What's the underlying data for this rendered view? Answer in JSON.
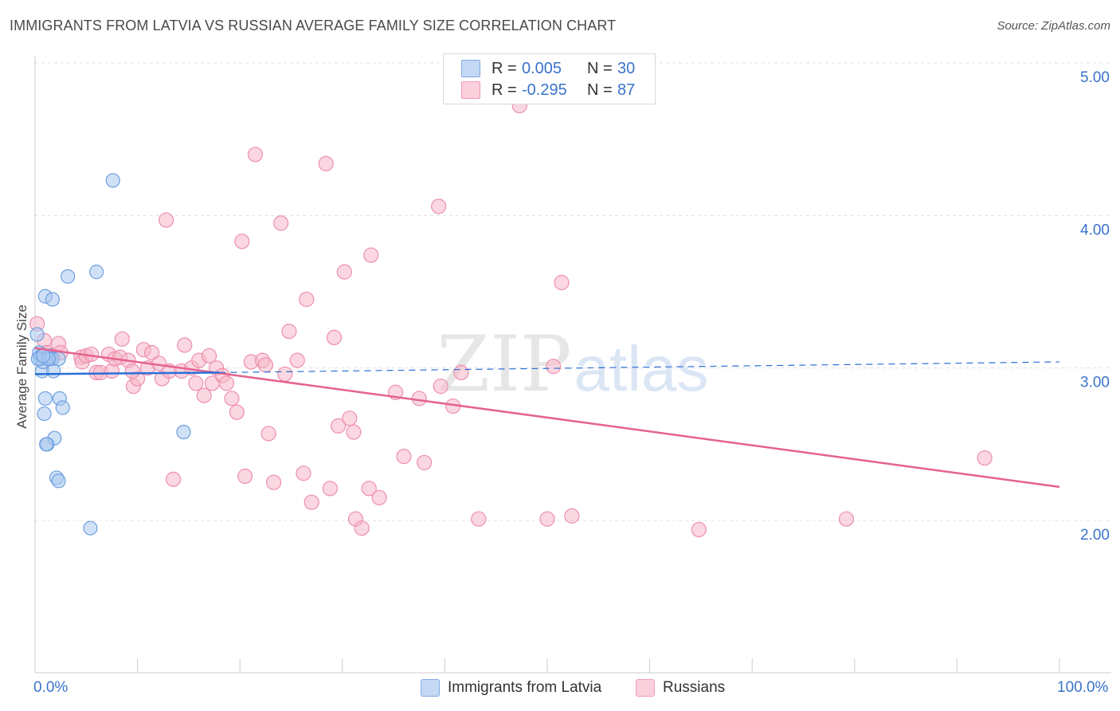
{
  "title": "IMMIGRANTS FROM LATVIA VS RUSSIAN AVERAGE FAMILY SIZE CORRELATION CHART",
  "source": "Source: ZipAtlas.com",
  "watermark": {
    "zip": "ZIP",
    "atlas": "atlas"
  },
  "legend": {
    "rows": [
      {
        "r_label": "R =",
        "r_value": "0.005",
        "n_label": "N =",
        "n_value": "30",
        "color": "#a9c8f0"
      },
      {
        "r_label": "R =",
        "r_value": "-0.295",
        "n_label": "N =",
        "n_value": "87",
        "color": "#f6b7c9"
      }
    ]
  },
  "bottom_legend": {
    "latvia": "Immigrants from Latvia",
    "russians": "Russians"
  },
  "colors": {
    "latvia_fill": "#a9c8f0",
    "latvia_stroke": "#6d9fe0",
    "latvia_line": "#2a6fd6",
    "russians_fill": "#f6b7c9",
    "russians_stroke": "#ee8fae",
    "russians_line": "#e5628e",
    "tick_text": "#3a73c9",
    "grid": "#e0e0e0"
  },
  "chart_data": {
    "type": "scatter",
    "title": "IMMIGRANTS FROM LATVIA VS RUSSIAN AVERAGE FAMILY SIZE CORRELATION CHART",
    "xlabel": "",
    "ylabel": "Average Family Size",
    "xlim": [
      0,
      100
    ],
    "ylim": [
      1.0,
      5.1
    ],
    "x_tick_labels": [
      "0.0%",
      "100.0%"
    ],
    "y_ticks": [
      2.0,
      3.0,
      4.0,
      5.0
    ],
    "y_tick_labels": [
      "2.00",
      "3.00",
      "4.00",
      "5.00"
    ],
    "grid": true,
    "legend_position": "top-center",
    "series": [
      {
        "name": "Immigrants from Latvia",
        "points": [
          [
            0.2,
            3.22
          ],
          [
            0.4,
            3.1
          ],
          [
            0.5,
            3.06
          ],
          [
            0.6,
            3.08
          ],
          [
            0.7,
            2.98
          ],
          [
            0.8,
            3.04
          ],
          [
            0.9,
            2.7
          ],
          [
            1.0,
            2.8
          ],
          [
            1.0,
            3.47
          ],
          [
            1.2,
            2.5
          ],
          [
            1.4,
            3.08
          ],
          [
            1.5,
            3.06
          ],
          [
            1.7,
            3.06
          ],
          [
            1.8,
            2.98
          ],
          [
            1.7,
            3.45
          ],
          [
            1.9,
            2.54
          ],
          [
            2.1,
            2.28
          ],
          [
            2.3,
            3.06
          ],
          [
            2.3,
            2.26
          ],
          [
            2.4,
            2.8
          ],
          [
            2.7,
            2.74
          ],
          [
            3.2,
            3.6
          ],
          [
            5.4,
            1.95
          ],
          [
            6.0,
            3.63
          ],
          [
            7.6,
            4.23
          ],
          [
            14.5,
            2.58
          ],
          [
            1.1,
            2.5
          ],
          [
            0.3,
            3.06
          ],
          [
            1.3,
            3.06
          ],
          [
            0.8,
            3.08
          ]
        ],
        "trend": {
          "x": [
            0,
            18
          ],
          "y": [
            2.96,
            2.97
          ],
          "dashed_to": [
            100,
            3.04
          ]
        }
      },
      {
        "name": "Russians",
        "points": [
          [
            0.2,
            3.29
          ],
          [
            0.9,
            3.18
          ],
          [
            1.1,
            3.1
          ],
          [
            1.4,
            3.07
          ],
          [
            1.7,
            3.08
          ],
          [
            2.3,
            3.16
          ],
          [
            2.5,
            3.1
          ],
          [
            4.5,
            3.07
          ],
          [
            4.6,
            3.04
          ],
          [
            5.0,
            3.08
          ],
          [
            5.5,
            3.09
          ],
          [
            6.0,
            2.97
          ],
          [
            6.4,
            2.97
          ],
          [
            7.2,
            3.09
          ],
          [
            7.5,
            2.98
          ],
          [
            7.8,
            3.06
          ],
          [
            8.3,
            3.07
          ],
          [
            8.5,
            3.19
          ],
          [
            9.1,
            3.05
          ],
          [
            9.6,
            2.88
          ],
          [
            10.0,
            2.93
          ],
          [
            10.6,
            3.12
          ],
          [
            11.0,
            3.0
          ],
          [
            11.4,
            3.1
          ],
          [
            12.1,
            3.03
          ],
          [
            12.4,
            2.93
          ],
          [
            12.8,
            3.97
          ],
          [
            13.1,
            2.98
          ],
          [
            13.5,
            2.27
          ],
          [
            14.3,
            2.98
          ],
          [
            14.6,
            3.15
          ],
          [
            15.3,
            3.0
          ],
          [
            15.7,
            2.9
          ],
          [
            16.0,
            3.05
          ],
          [
            16.5,
            2.82
          ],
          [
            17.0,
            3.08
          ],
          [
            17.3,
            2.9
          ],
          [
            17.7,
            3.0
          ],
          [
            18.3,
            2.95
          ],
          [
            18.7,
            2.9
          ],
          [
            19.2,
            2.8
          ],
          [
            19.7,
            2.71
          ],
          [
            20.2,
            3.83
          ],
          [
            20.5,
            2.29
          ],
          [
            21.1,
            3.04
          ],
          [
            21.5,
            4.4
          ],
          [
            22.2,
            3.05
          ],
          [
            22.5,
            3.02
          ],
          [
            22.8,
            2.57
          ],
          [
            23.3,
            2.25
          ],
          [
            24.0,
            3.95
          ],
          [
            24.4,
            2.96
          ],
          [
            24.8,
            3.24
          ],
          [
            25.6,
            3.05
          ],
          [
            26.2,
            2.31
          ],
          [
            26.5,
            3.45
          ],
          [
            27.0,
            2.12
          ],
          [
            28.4,
            4.34
          ],
          [
            28.8,
            2.21
          ],
          [
            29.2,
            3.2
          ],
          [
            29.6,
            2.62
          ],
          [
            30.2,
            3.63
          ],
          [
            30.7,
            2.67
          ],
          [
            31.1,
            2.58
          ],
          [
            31.3,
            2.01
          ],
          [
            31.9,
            1.95
          ],
          [
            32.6,
            2.21
          ],
          [
            32.8,
            3.74
          ],
          [
            33.6,
            2.15
          ],
          [
            35.2,
            2.84
          ],
          [
            36.0,
            2.42
          ],
          [
            37.5,
            2.8
          ],
          [
            38.0,
            2.38
          ],
          [
            39.4,
            4.06
          ],
          [
            39.6,
            2.88
          ],
          [
            40.8,
            2.75
          ],
          [
            41.6,
            2.97
          ],
          [
            43.3,
            2.01
          ],
          [
            47.3,
            4.72
          ],
          [
            50.0,
            2.01
          ],
          [
            50.6,
            3.01
          ],
          [
            51.4,
            3.56
          ],
          [
            52.4,
            2.03
          ],
          [
            64.8,
            1.94
          ],
          [
            79.2,
            2.01
          ],
          [
            92.7,
            2.41
          ],
          [
            9.5,
            2.98
          ]
        ],
        "trend": {
          "x": [
            0,
            100
          ],
          "y": [
            3.13,
            2.22
          ]
        }
      }
    ]
  }
}
